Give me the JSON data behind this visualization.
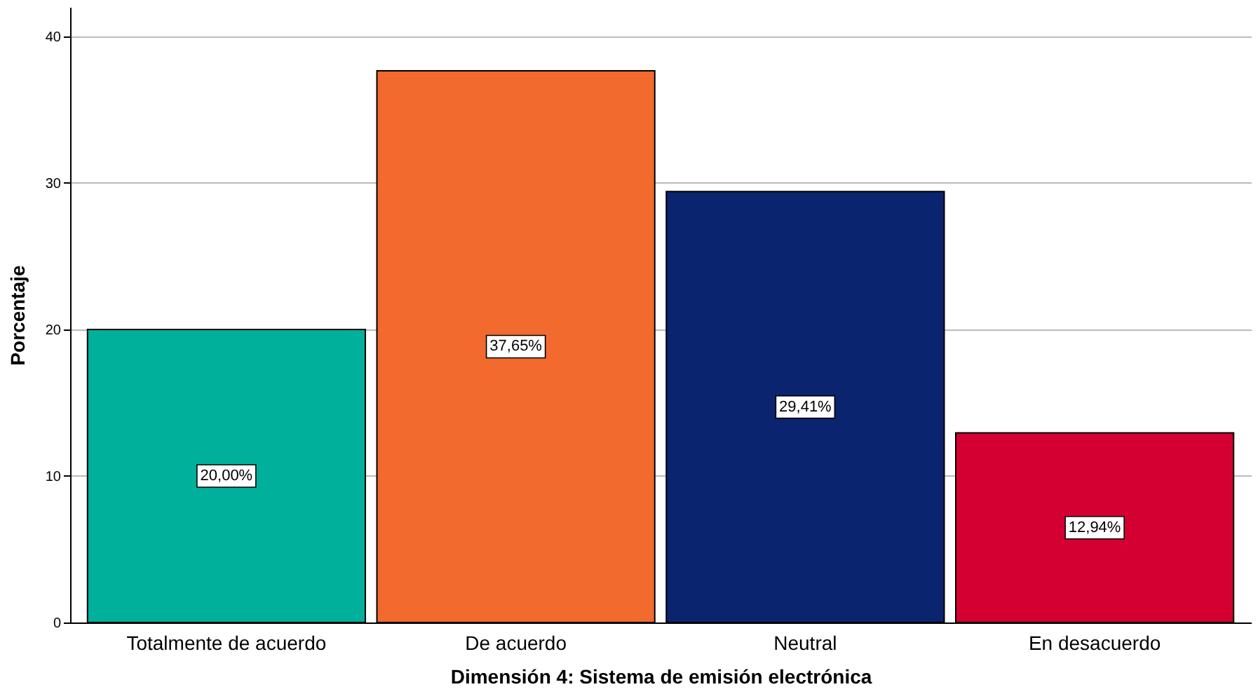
{
  "chart_data": {
    "type": "bar",
    "xlabel": "Dimensión 4: Sistema de emisión electrónica",
    "ylabel": "Porcentaje",
    "categories": [
      "Totalmente de acuerdo",
      "De acuerdo",
      "Neutral",
      "En desacuerdo"
    ],
    "values": [
      20.0,
      37.65,
      29.41,
      12.94
    ],
    "colors": [
      "#00b09b",
      "#f26a2e",
      "#0b2470",
      "#d40032"
    ],
    "value_labels": [
      "20,00%",
      "37,65%",
      "29,41%",
      "12,94%"
    ],
    "ylim": [
      0,
      42
    ],
    "yticks": [
      0,
      10,
      20,
      30,
      40
    ],
    "grid": "y",
    "legend": false
  }
}
